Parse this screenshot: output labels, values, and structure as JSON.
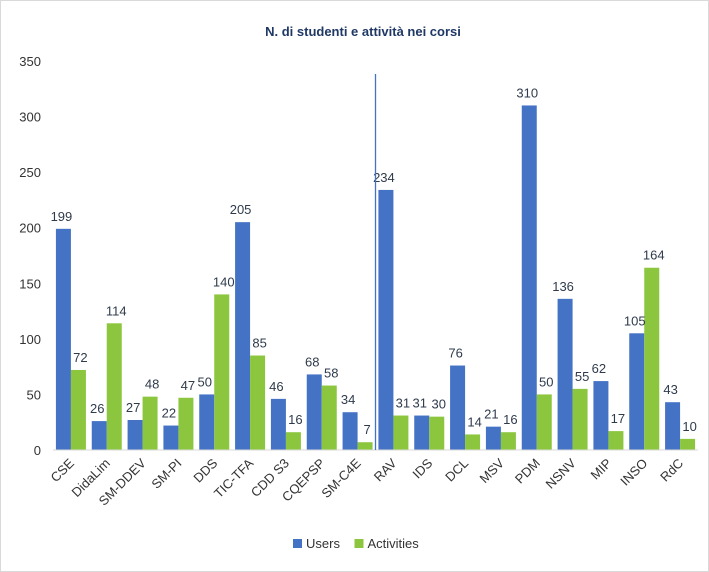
{
  "chart_data": {
    "type": "bar",
    "title": "N. di studenti e attività nei corsi",
    "categories": [
      "CSE",
      "DidaLim",
      "SM-DDEV",
      "SM-PI",
      "DDS",
      "TIC-TFA",
      "CDD S3",
      "CQEPSP",
      "SM-C4E",
      "RAV",
      "IDS",
      "DCL",
      "MSV",
      "PDM",
      "NSNV",
      "MIP",
      "INSO",
      "RdC"
    ],
    "series": [
      {
        "name": "Users",
        "color": "#4472c4",
        "values": [
          199,
          26,
          27,
          22,
          50,
          205,
          46,
          68,
          34,
          234,
          31,
          76,
          21,
          310,
          136,
          62,
          105,
          43
        ]
      },
      {
        "name": "Activities",
        "color": "#8cc63f",
        "values": [
          72,
          114,
          48,
          47,
          140,
          85,
          16,
          58,
          7,
          31,
          30,
          14,
          16,
          50,
          55,
          17,
          164,
          10
        ]
      }
    ],
    "ylim": [
      0,
      350
    ],
    "yticks": [
      0,
      50,
      100,
      150,
      200,
      250,
      300,
      350
    ],
    "gridlines": false,
    "divider_after_category": "SM-C4E",
    "legend_position": "bottom",
    "xlabel": "",
    "ylabel": ""
  }
}
